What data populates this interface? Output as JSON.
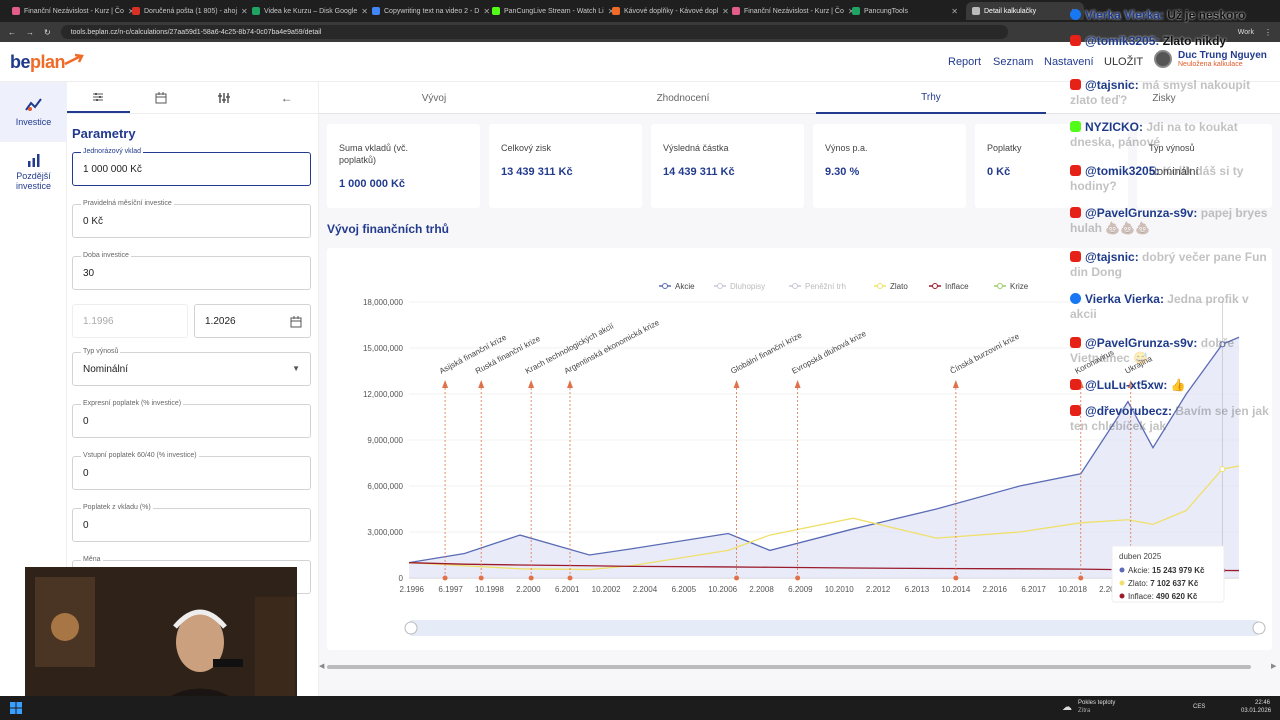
{
  "browser": {
    "tabs": [
      {
        "title": "Finanční Nezávislost - Kurz | Čo",
        "color": "#e35d8c"
      },
      {
        "title": "Doručená pošta (1 805) - ahoj",
        "color": "#d93025"
      },
      {
        "title": "Videa ke Kurzu – Disk Google",
        "color": "#1fa463"
      },
      {
        "title": "Copywriting text na video 2 - D",
        "color": "#4285f4"
      },
      {
        "title": "PanCungLive Stream - Watch Li",
        "color": "#53fc18"
      },
      {
        "title": "Kávové doplňky - Kávové dopl",
        "color": "#f06a28"
      },
      {
        "title": "Finanční Nezávislost - Kurz | Čo",
        "color": "#e35d8c"
      },
      {
        "title": "PancungTools",
        "color": "#1fa463"
      },
      {
        "title": "Detail kalkulačky",
        "color": "#bbbbbb"
      }
    ],
    "url": "tools.beplan.cz/n-c/calculations/27aa59d1-58a6-4c25-8b74-0c07ba4e9a59/detail",
    "profile": "Work"
  },
  "header": {
    "logo_a": "be",
    "logo_b": "plan",
    "nav": [
      "Report",
      "Seznam",
      "Nastavení",
      "ULOŽIT"
    ],
    "user_name": "Duc Trung Nguyen",
    "user_sub": "Neuložena kalkulace"
  },
  "rail": {
    "items": [
      {
        "label": "Investice",
        "icon": "investment-icon"
      },
      {
        "label": "Pozdější investice",
        "icon": "bar-chart-icon"
      }
    ]
  },
  "params": {
    "title": "Parametry",
    "fields": {
      "single": {
        "label": "Jednorázový vklad",
        "value": "1 000 000 Kč"
      },
      "monthly": {
        "label": "Pravidelná měsíční investice",
        "value": "0 Kč"
      },
      "duration": {
        "label": "Doba investice",
        "value": "30"
      },
      "from": {
        "value": "1.1996"
      },
      "to": {
        "value": "1.2026"
      },
      "yield_type": {
        "label": "Typ výnosů",
        "value": "Nominální"
      },
      "express_fee": {
        "label": "Expresní poplatek (% investice)",
        "value": "0"
      },
      "entry_fee": {
        "label": "Vstupní poplatek 60/40 (% investice)",
        "value": "0"
      },
      "deposit_fee": {
        "label": "Poplatek z vkladu (%)",
        "value": "0"
      },
      "currency": {
        "label": "Měna"
      }
    }
  },
  "main": {
    "tabs": [
      "Vývoj",
      "Zhodnocení",
      "Trhy",
      "Zisky"
    ],
    "cards": [
      {
        "label": "Suma vkladů (vč. poplatků)",
        "value": "1 000 000 Kč"
      },
      {
        "label": "Celkový zisk",
        "value": "13 439 311 Kč"
      },
      {
        "label": "Výsledná částka",
        "value": "14 439 311 Kč"
      },
      {
        "label": "Výnos p.a.",
        "value": "9.30 %"
      },
      {
        "label": "Poplatky",
        "value": "0 Kč"
      },
      {
        "label": "Typ výnosů",
        "value": "Nominální"
      }
    ],
    "section_title": "Vývoj finančních trhů"
  },
  "chart_data": {
    "type": "line",
    "legend": [
      "Akcie",
      "Dluhopisy",
      "Peněžní trh",
      "Zlato",
      "Inflace",
      "Krize"
    ],
    "legend_placement": "top",
    "colors": {
      "Akcie": "#5a6bb5",
      "Dluhopisy": "#c8c8d8",
      "Peněžní trh": "#c8c8d8",
      "Zlato": "#efe06a",
      "Inflace": "#9b1b2c",
      "Krize": "#9ccc65"
    },
    "ylim": [
      0,
      18000000
    ],
    "yticks": [
      "0",
      "3,000,000",
      "6,000,000",
      "9,000,000",
      "12,000,000",
      "15,000,000",
      "18,000,000"
    ],
    "xticks": [
      "2.1996",
      "6.1997",
      "10.1998",
      "2.2000",
      "6.2001",
      "10.2002",
      "2.2004",
      "6.2005",
      "10.2006",
      "2.2008",
      "6.2009",
      "10.2010",
      "2.2012",
      "6.2013",
      "10.2014",
      "2.2016",
      "6.2017",
      "10.2018",
      "2.2020"
    ],
    "x": [
      1996.0,
      1998.0,
      2000.0,
      2002.5,
      2004.0,
      2007.5,
      2009.0,
      2012.0,
      2015.0,
      2018.0,
      2020.2,
      2021.9,
      2022.8,
      2024.0,
      2025.3,
      2025.9
    ],
    "series": [
      {
        "name": "Akcie",
        "values": [
          1000000,
          1600000,
          2800000,
          1500000,
          1900000,
          2900000,
          1800000,
          3200000,
          4500000,
          6000000,
          6800000,
          11500000,
          8500000,
          12000000,
          15243979,
          15700000
        ]
      },
      {
        "name": "Zlato",
        "values": [
          1000000,
          800000,
          600000,
          550000,
          800000,
          1800000,
          2800000,
          3900000,
          2600000,
          3000000,
          3600000,
          3800000,
          3500000,
          4400000,
          7102637,
          7300000
        ]
      },
      {
        "name": "Inflace",
        "values": [
          1000000,
          900000,
          850000,
          800000,
          760000,
          720000,
          700000,
          650000,
          620000,
          600000,
          580000,
          540000,
          520000,
          505000,
          490620,
          485000
        ]
      }
    ],
    "crises": [
      {
        "label": "Asijská finanční krize",
        "x": 1997.3
      },
      {
        "label": "Ruská finanční krize",
        "x": 1998.6
      },
      {
        "label": "Krach technologických akcií",
        "x": 2000.4
      },
      {
        "label": "Argentinská ekonomická krize",
        "x": 2001.8
      },
      {
        "label": "Globální finanční krize",
        "x": 2007.8
      },
      {
        "label": "Evropská dluhová krize",
        "x": 2010.0
      },
      {
        "label": "Čínská burzovní krize",
        "x": 2015.7
      },
      {
        "label": "Koronavirus",
        "x": 2020.2
      },
      {
        "label": "Ukrajina",
        "x": 2022.0
      }
    ],
    "tooltip": {
      "title": "duben 2025",
      "rows": [
        {
          "label": "Akcie",
          "value": "15 243 979 Kč"
        },
        {
          "label": "Zlato",
          "value": "7 102 637 Kč"
        },
        {
          "label": "Inflace",
          "value": "490 620 Kč"
        }
      ]
    }
  },
  "chat": [
    {
      "platform": "facebook",
      "name": "Vierka Vierka:",
      "text": "Už je neskoro",
      "visible": true
    },
    {
      "platform": "youtube",
      "name": "@tomik3205:",
      "text": "Zlato nikdy",
      "visible": true
    },
    {
      "platform": "youtube",
      "name": "@tajsnic:",
      "text": "má smysl nakoupit zlato teď?",
      "visible": false
    },
    {
      "platform": "kick",
      "name": "NYZICKO:",
      "text": "Jdi na to koukat dneska, pánové",
      "visible": false
    },
    {
      "platform": "youtube",
      "name": "@tomik3205:",
      "text": "Kolik dáš si ty hodiny?",
      "visible": false
    },
    {
      "platform": "youtube",
      "name": "@PavelGrunza-s9v:",
      "text": "papej bryes hulah 💩💩💩",
      "visible": false
    },
    {
      "platform": "youtube",
      "name": "@tajsnic:",
      "text": "dobrý večer pane Fun din Dong",
      "visible": false
    },
    {
      "platform": "facebook",
      "name": "Vierka Vierka:",
      "text": "Jedna profik v akcii",
      "visible": false
    },
    {
      "platform": "youtube",
      "name": "@PavelGrunza-s9v:",
      "text": "dobře Vietnamec 😅",
      "visible": false
    },
    {
      "platform": "youtube",
      "name": "@LuLu-xt5xw:",
      "text": "👍",
      "visible": true
    },
    {
      "platform": "youtube",
      "name": "@dřevorubecz:",
      "text": "Bavím se jen jak ten chlebíček jak",
      "visible": false
    }
  ],
  "taskbar": {
    "weather": "Pokles teploty",
    "weather_sub": "Zítra",
    "lang": "CES",
    "time": "22:46",
    "date": "03.01.2026"
  }
}
